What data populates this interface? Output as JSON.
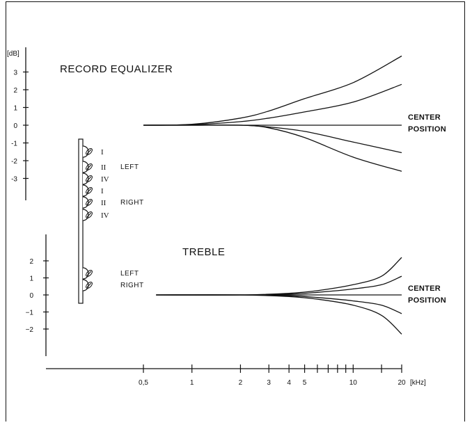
{
  "chart_data": [
    {
      "type": "line",
      "title": "RECORD EQUALIZER",
      "ylabel": "[dB]",
      "x_scale": "log",
      "y_ticks": [
        3,
        2,
        1,
        0,
        -1,
        -2,
        -3
      ],
      "y_tick_labels": [
        "3",
        "2",
        "1",
        "0",
        "-1",
        "-2",
        "-3"
      ],
      "ylim": [
        -3.5,
        3.5
      ],
      "annotation": [
        "CENTER",
        "POSITION"
      ],
      "series": [
        {
          "x": [
            0.5,
            1,
            2,
            3,
            5,
            10,
            20
          ],
          "y": [
            0,
            0.05,
            0.4,
            0.8,
            1.5,
            2.4,
            3.9
          ]
        },
        {
          "x": [
            0.5,
            1,
            2,
            3,
            5,
            10,
            20
          ],
          "y": [
            0,
            0.03,
            0.2,
            0.4,
            0.75,
            1.3,
            2.3
          ]
        },
        {
          "x": [
            0.5,
            1,
            2,
            3,
            5,
            10,
            20
          ],
          "y": [
            0,
            0,
            0,
            -0.1,
            -0.35,
            -0.95,
            -1.55
          ]
        },
        {
          "x": [
            0.5,
            1,
            2,
            3,
            5,
            10,
            20
          ],
          "y": [
            0,
            0,
            0,
            -0.15,
            -0.7,
            -1.8,
            -2.6
          ]
        }
      ]
    },
    {
      "type": "line",
      "title": "TREBLE",
      "x_scale": "log",
      "y_ticks": [
        2,
        1,
        0,
        -1,
        -2
      ],
      "y_tick_labels": [
        "2",
        "1",
        "0",
        "−1",
        "−2"
      ],
      "ylim": [
        -2.5,
        2.5
      ],
      "annotation": [
        "CENTER",
        "POSITION"
      ],
      "series": [
        {
          "x": [
            0.6,
            2,
            4,
            6,
            10,
            15,
            20
          ],
          "y": [
            0,
            0,
            0.1,
            0.25,
            0.6,
            1.1,
            2.2
          ]
        },
        {
          "x": [
            0.6,
            2,
            4,
            6,
            10,
            15,
            20
          ],
          "y": [
            0,
            0,
            0.05,
            0.15,
            0.35,
            0.6,
            1.1
          ]
        },
        {
          "x": [
            0.6,
            2,
            4,
            6,
            10,
            15,
            20
          ],
          "y": [
            0,
            0,
            -0.05,
            -0.15,
            -0.35,
            -0.6,
            -1.1
          ]
        },
        {
          "x": [
            0.6,
            2,
            4,
            6,
            10,
            15,
            20
          ],
          "y": [
            0,
            0,
            -0.1,
            -0.25,
            -0.6,
            -1.2,
            -2.3
          ]
        }
      ]
    }
  ],
  "x_axis": {
    "ticks": [
      0.5,
      1,
      2,
      3,
      4,
      5,
      6,
      7,
      8,
      9,
      10,
      15,
      20
    ],
    "labeled_ticks": [
      {
        "value": 0.5,
        "label": "0,5"
      },
      {
        "value": 1,
        "label": "1"
      },
      {
        "value": 2,
        "label": "2"
      },
      {
        "value": 3,
        "label": "3"
      },
      {
        "value": 4,
        "label": "4"
      },
      {
        "value": 5,
        "label": "5"
      },
      {
        "value": 10,
        "label": "10"
      },
      {
        "value": 20,
        "label": "20"
      }
    ],
    "unit_label": "[kHz]"
  },
  "control_panel": {
    "knob_labels": [
      "I",
      "II",
      "IV",
      "I",
      "II",
      "IV"
    ],
    "left_label": "LEFT",
    "right_label": "RIGHT",
    "treble_left_label": "LEFT",
    "treble_right_label": "RIGHT"
  }
}
